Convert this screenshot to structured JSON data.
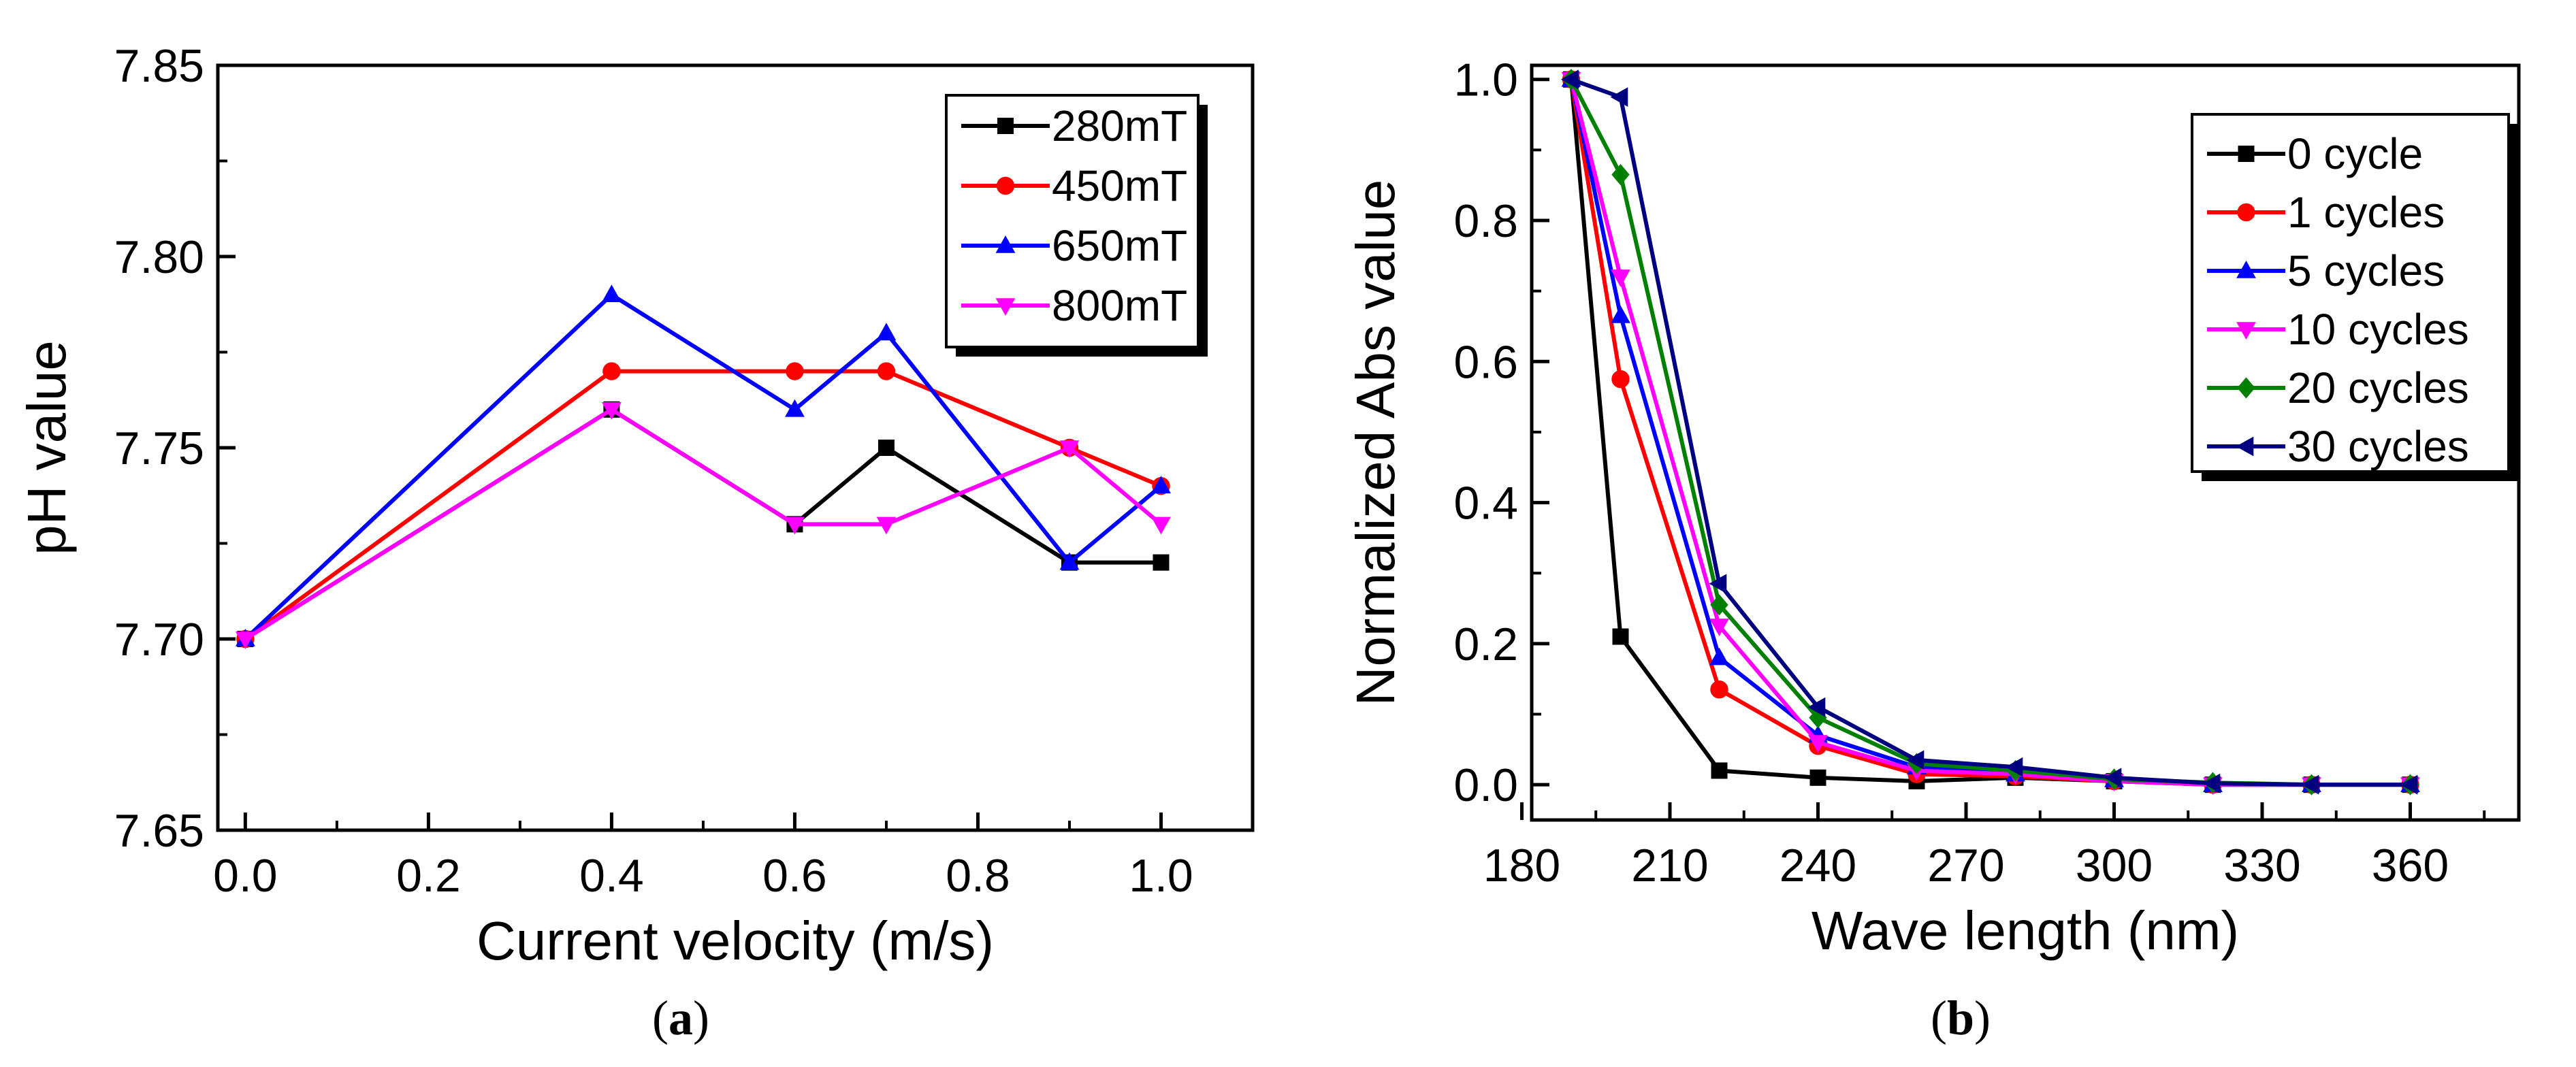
{
  "chart_data": [
    {
      "type": "line",
      "panel": "a",
      "caption_letter": "a",
      "xlabel": "Current velocity (m/s)",
      "ylabel": "pH value",
      "xlim": [
        -0.03,
        1.1
      ],
      "ylim": [
        7.65,
        7.85
      ],
      "xticks": [
        "0.0",
        "0.2",
        "0.4",
        "0.6",
        "0.8",
        "1.0"
      ],
      "yticks": [
        "7.65",
        "7.70",
        "7.75",
        "7.80",
        "7.85"
      ],
      "grid": false,
      "legend_position": "top-right",
      "series": [
        {
          "name": "280mT",
          "color": "#000000",
          "marker": "square",
          "x": [
            0.0,
            0.4,
            0.6,
            0.7,
            0.9,
            1.0
          ],
          "values": [
            7.7,
            7.76,
            7.73,
            7.75,
            7.72,
            7.72
          ]
        },
        {
          "name": "450mT",
          "color": "#ff0000",
          "marker": "circle",
          "x": [
            0.0,
            0.4,
            0.6,
            0.7,
            0.9,
            1.0
          ],
          "values": [
            7.7,
            7.77,
            7.77,
            7.77,
            7.75,
            7.74
          ]
        },
        {
          "name": "650mT",
          "color": "#0000ff",
          "marker": "triangle-up",
          "x": [
            0.0,
            0.4,
            0.6,
            0.7,
            0.9,
            1.0
          ],
          "values": [
            7.7,
            7.79,
            7.76,
            7.78,
            7.72,
            7.74
          ]
        },
        {
          "name": "800mT",
          "color": "#ff00ff",
          "marker": "triangle-down",
          "x": [
            0.0,
            0.4,
            0.6,
            0.7,
            0.9,
            1.0
          ],
          "values": [
            7.7,
            7.76,
            7.73,
            7.73,
            7.75,
            7.73
          ]
        }
      ]
    },
    {
      "type": "line",
      "panel": "b",
      "caption_letter": "b",
      "xlabel": "Wave length (nm)",
      "ylabel": "Normalized Abs value",
      "xlim": [
        182,
        382
      ],
      "ylim": [
        -0.05,
        1.02
      ],
      "xticks": [
        "180",
        "210",
        "240",
        "270",
        "300",
        "330",
        "360"
      ],
      "yticks": [
        "0.0",
        "0.2",
        "0.4",
        "0.6",
        "0.8",
        "1.0"
      ],
      "grid": false,
      "legend_position": "top-right",
      "series": [
        {
          "name": "0 cycle",
          "color": "#000000",
          "marker": "square",
          "x": [
            190,
            200,
            220,
            240,
            260,
            280,
            300,
            320,
            340,
            360
          ],
          "values": [
            1.0,
            0.21,
            0.02,
            0.01,
            0.005,
            0.01,
            0.005,
            0.0,
            0.0,
            0.0
          ]
        },
        {
          "name": "1 cycles",
          "color": "#ff0000",
          "marker": "circle",
          "x": [
            190,
            200,
            220,
            240,
            260,
            280,
            300,
            320,
            340,
            360
          ],
          "values": [
            1.0,
            0.575,
            0.135,
            0.055,
            0.015,
            0.012,
            0.005,
            0.0,
            0.0,
            0.0
          ]
        },
        {
          "name": "5 cycles",
          "color": "#0000ff",
          "marker": "triangle-up",
          "x": [
            190,
            200,
            220,
            240,
            260,
            280,
            300,
            320,
            340,
            360
          ],
          "values": [
            1.0,
            0.665,
            0.18,
            0.07,
            0.025,
            0.015,
            0.007,
            0.0,
            0.0,
            0.0
          ]
        },
        {
          "name": "10 cycles",
          "color": "#ff00ff",
          "marker": "triangle-down",
          "x": [
            190,
            200,
            220,
            240,
            260,
            280,
            300,
            320,
            340,
            360
          ],
          "values": [
            1.0,
            0.72,
            0.225,
            0.06,
            0.02,
            0.015,
            0.005,
            0.0,
            0.0,
            0.0
          ]
        },
        {
          "name": "20 cycles",
          "color": "#008000",
          "marker": "diamond",
          "x": [
            190,
            200,
            220,
            240,
            260,
            280,
            300,
            320,
            340,
            360
          ],
          "values": [
            1.0,
            0.865,
            0.255,
            0.095,
            0.03,
            0.02,
            0.008,
            0.003,
            0.0,
            0.0
          ]
        },
        {
          "name": "30 cycles",
          "color": "#000080",
          "marker": "triangle-left",
          "x": [
            190,
            200,
            220,
            240,
            260,
            280,
            300,
            320,
            340,
            360
          ],
          "values": [
            1.0,
            0.975,
            0.285,
            0.11,
            0.035,
            0.025,
            0.01,
            0.002,
            0.0,
            0.0
          ]
        }
      ]
    }
  ]
}
